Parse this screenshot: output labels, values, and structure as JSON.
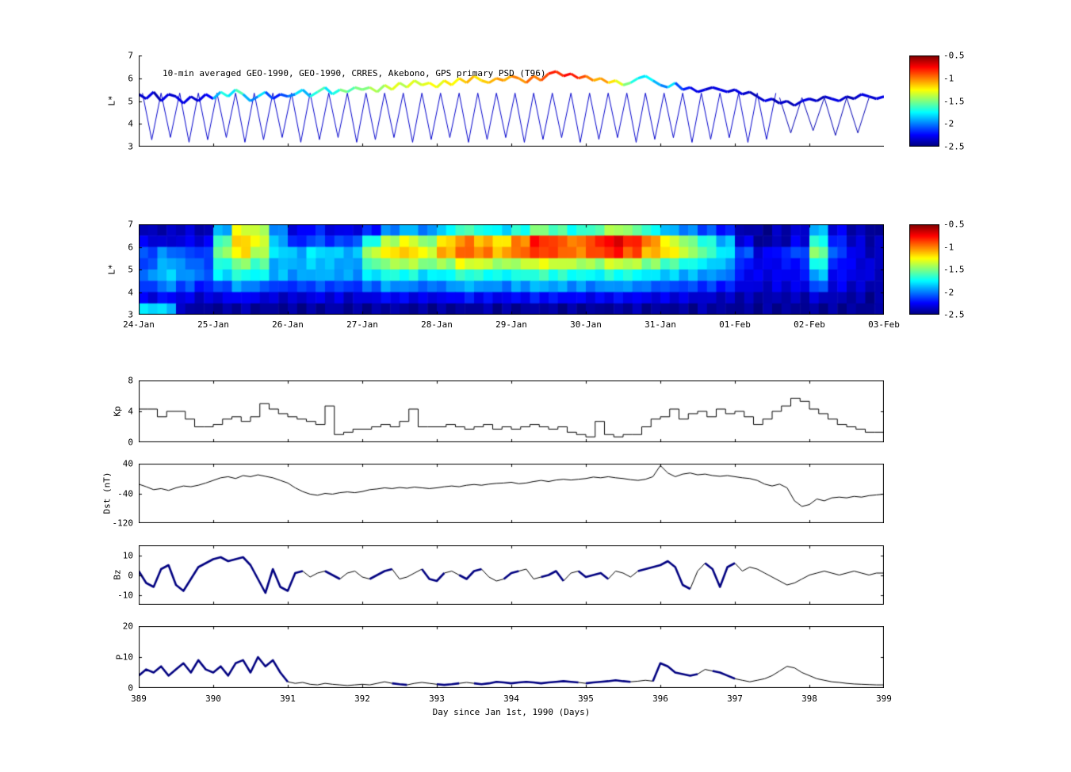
{
  "figure": {
    "background": "#ffffff"
  },
  "colormap": {
    "name": "jet",
    "range": [
      -2.5,
      -0.5
    ],
    "tick_labels": [
      "-0.5",
      "-1",
      "-1.5",
      "-2",
      "-2.5"
    ]
  },
  "chart_data": [
    {
      "id": "psd-scatter",
      "type": "scatter",
      "title": "10-min averaged GEO-1990, GEO-1990, CRRES, Akebono, GPS  primary PSD (T96)",
      "ylabel": "L*",
      "xlim": [
        389,
        399
      ],
      "ylim": [
        3,
        7
      ],
      "yticks": [
        3,
        4,
        5,
        6,
        7
      ],
      "track": {
        "x_start": 389.0,
        "x_step": 0.1,
        "y": [
          5.3,
          5.1,
          5.4,
          5.0,
          5.3,
          5.2,
          4.9,
          5.2,
          5.0,
          5.3,
          5.1,
          5.4,
          5.2,
          5.5,
          5.3,
          5.0,
          5.2,
          5.4,
          5.1,
          5.3,
          5.2,
          5.3,
          5.5,
          5.2,
          5.4,
          5.6,
          5.3,
          5.5,
          5.4,
          5.6,
          5.5,
          5.6,
          5.4,
          5.7,
          5.5,
          5.8,
          5.6,
          5.9,
          5.7,
          5.8,
          5.6,
          5.9,
          5.7,
          6.0,
          5.8,
          6.1,
          5.9,
          5.8,
          6.0,
          5.9,
          6.1,
          6.0,
          5.8,
          6.1,
          5.9,
          6.2,
          6.3,
          6.1,
          6.2,
          6.0,
          6.1,
          5.9,
          6.0,
          5.8,
          5.9,
          5.7,
          5.8,
          6.0,
          6.1,
          5.9,
          5.7,
          5.6,
          5.8,
          5.5,
          5.6,
          5.4,
          5.5,
          5.6,
          5.5,
          5.4,
          5.5,
          5.3,
          5.4,
          5.2,
          5.0,
          5.1,
          4.9,
          5.0,
          4.8,
          5.0,
          5.1,
          5.0,
          5.2,
          5.1,
          5.0,
          5.2,
          5.1,
          5.3,
          5.2,
          5.1,
          5.2
        ],
        "v": [
          -2.3,
          -2.35,
          -2.3,
          -2.4,
          -2.3,
          -2.35,
          -2.3,
          -2.3,
          -2.35,
          -2.3,
          -2.25,
          -1.9,
          -1.7,
          -1.8,
          -1.6,
          -1.9,
          -2.0,
          -1.8,
          -2.1,
          -2.2,
          -2.1,
          -2.0,
          -1.8,
          -1.9,
          -1.7,
          -1.6,
          -1.8,
          -1.7,
          -1.5,
          -1.6,
          -1.5,
          -1.5,
          -1.4,
          -1.45,
          -1.35,
          -1.3,
          -1.4,
          -1.3,
          -1.35,
          -1.3,
          -1.25,
          -1.3,
          -1.2,
          -1.25,
          -1.15,
          -1.1,
          -1.2,
          -1.15,
          -1.1,
          -1.05,
          -1.1,
          -1.0,
          -1.05,
          -0.95,
          -1.0,
          -0.9,
          -0.8,
          -0.85,
          -0.75,
          -0.8,
          -0.9,
          -1.0,
          -1.1,
          -1.05,
          -1.2,
          -1.3,
          -1.5,
          -1.7,
          -1.8,
          -1.75,
          -1.9,
          -2.0,
          -1.8,
          -2.1,
          -2.2,
          -2.3,
          -2.3,
          -2.35,
          -2.3,
          -2.3,
          -2.35,
          -2.3,
          -2.35,
          -2.4,
          -2.35,
          -2.3,
          -2.4,
          -2.35,
          -2.4,
          -2.35,
          -2.3,
          -2.35,
          -2.4,
          -2.35,
          -2.3,
          -2.35,
          -2.4,
          -2.35,
          -2.3,
          -2.35,
          -2.3
        ]
      },
      "orbit_sawtooth": [
        {
          "x_start": 389.05,
          "x_end": 397.55,
          "period": 0.25,
          "y_top": 5.35,
          "y_bottom": 3.3,
          "value": -2.35
        },
        {
          "x_start": 397.6,
          "x_end": 399.0,
          "period": 0.3,
          "y_top": 5.15,
          "y_bottom": 3.6,
          "value": -2.4
        }
      ]
    },
    {
      "id": "psd-map",
      "type": "heatmap",
      "ylabel": "L*",
      "xlim": [
        389,
        399
      ],
      "ylim": [
        3,
        7
      ],
      "yticks": [
        3,
        4,
        5,
        6,
        7
      ],
      "xtick_labels": [
        "24-Jan",
        "25-Jan",
        "26-Jan",
        "27-Jan",
        "28-Jan",
        "29-Jan",
        "30-Jan",
        "31-Jan",
        "01-Feb",
        "02-Feb",
        "03-Feb"
      ],
      "grid": {
        "x0": 389,
        "dx": 0.25,
        "y_top": 7,
        "dy": 0.5,
        "values_top_to_bottom": [
          [
            -2.4,
            -2.4,
            -2.35,
            -2.4,
            -1.9,
            -1.3,
            -1.4,
            -2.0,
            -2.3,
            -2.2,
            -2.3,
            -2.3,
            -2.2,
            -2.0,
            -1.9,
            -2.0,
            -1.8,
            -1.6,
            -1.7,
            -1.8,
            -1.7,
            -1.5,
            -1.6,
            -1.7,
            -1.6,
            -1.4,
            -1.5,
            -1.7,
            -1.9,
            -2.0,
            -2.1,
            -2.2,
            -2.4,
            -2.45,
            -2.4,
            -2.35,
            -1.9,
            -2.3,
            -2.4,
            -2.45
          ],
          [
            -2.3,
            -2.35,
            -2.3,
            -2.3,
            -1.6,
            -1.15,
            -1.3,
            -1.9,
            -2.2,
            -2.1,
            -2.15,
            -2.1,
            -1.7,
            -1.4,
            -1.3,
            -1.5,
            -1.2,
            -1.0,
            -1.1,
            -1.2,
            -1.0,
            -0.8,
            -0.9,
            -1.0,
            -0.85,
            -0.7,
            -0.8,
            -1.0,
            -1.3,
            -1.5,
            -1.7,
            -1.9,
            -2.3,
            -2.45,
            -2.4,
            -2.3,
            -1.7,
            -2.2,
            -2.35,
            -2.4
          ],
          [
            -2.1,
            -2.0,
            -2.1,
            -2.15,
            -1.5,
            -1.2,
            -1.4,
            -1.8,
            -1.9,
            -1.8,
            -1.85,
            -1.9,
            -1.4,
            -1.2,
            -1.15,
            -1.3,
            -1.1,
            -0.95,
            -1.0,
            -1.1,
            -0.95,
            -0.85,
            -0.9,
            -1.0,
            -0.9,
            -0.8,
            -0.9,
            -1.1,
            -1.2,
            -1.4,
            -1.6,
            -1.8,
            -2.1,
            -2.3,
            -2.2,
            -2.1,
            -1.5,
            -2.1,
            -2.3,
            -2.4
          ],
          [
            -2.1,
            -1.9,
            -2.0,
            -2.1,
            -1.7,
            -1.5,
            -1.6,
            -1.9,
            -1.9,
            -1.85,
            -1.9,
            -1.95,
            -1.6,
            -1.45,
            -1.4,
            -1.5,
            -1.45,
            -1.3,
            -1.35,
            -1.45,
            -1.4,
            -1.3,
            -1.35,
            -1.4,
            -1.45,
            -1.35,
            -1.4,
            -1.5,
            -1.6,
            -1.7,
            -1.8,
            -1.9,
            -2.2,
            -2.3,
            -2.25,
            -2.2,
            -1.7,
            -2.2,
            -2.3,
            -2.35
          ],
          [
            -2.0,
            -1.85,
            -1.95,
            -2.05,
            -1.8,
            -1.7,
            -1.75,
            -1.9,
            -1.95,
            -1.9,
            -1.92,
            -1.95,
            -1.8,
            -1.7,
            -1.72,
            -1.8,
            -1.75,
            -1.65,
            -1.7,
            -1.75,
            -1.7,
            -1.65,
            -1.68,
            -1.72,
            -1.75,
            -1.7,
            -1.72,
            -1.8,
            -1.85,
            -1.9,
            -1.95,
            -2.0,
            -2.25,
            -2.3,
            -2.28,
            -2.25,
            -1.9,
            -2.25,
            -2.3,
            -2.35
          ],
          [
            -2.15,
            -2.0,
            -2.1,
            -2.2,
            -2.1,
            -1.95,
            -2.05,
            -2.15,
            -2.15,
            -2.1,
            -2.12,
            -2.15,
            -2.05,
            -1.95,
            -2.0,
            -2.05,
            -2.0,
            -1.9,
            -1.95,
            -2.0,
            -1.95,
            -1.9,
            -1.93,
            -1.97,
            -2.0,
            -1.95,
            -1.97,
            -2.05,
            -2.1,
            -2.12,
            -2.15,
            -2.2,
            -2.3,
            -2.35,
            -2.32,
            -2.3,
            -2.1,
            -2.3,
            -2.35,
            -2.4
          ],
          [
            -2.3,
            -2.25,
            -2.3,
            -2.35,
            -2.3,
            -2.25,
            -2.3,
            -2.35,
            -2.35,
            -2.3,
            -2.32,
            -2.35,
            -2.3,
            -2.25,
            -2.28,
            -2.3,
            -2.28,
            -2.22,
            -2.25,
            -2.28,
            -2.25,
            -2.22,
            -2.24,
            -2.26,
            -2.28,
            -2.25,
            -2.26,
            -2.3,
            -2.3,
            -2.32,
            -2.35,
            -2.38,
            -2.4,
            -2.42,
            -2.4,
            -2.4,
            -2.35,
            -2.4,
            -2.42,
            -2.45
          ],
          [
            -1.8,
            -1.85,
            -2.4,
            -2.45,
            -2.45,
            -2.42,
            -2.45,
            -2.45,
            -2.45,
            -2.45,
            -2.42,
            -2.45,
            -2.45,
            -2.42,
            -2.45,
            -2.45,
            -2.45,
            -2.45,
            -2.42,
            -2.45,
            -2.45,
            -2.42,
            -2.45,
            -2.45,
            -2.45,
            -2.45,
            -2.42,
            -2.45,
            -2.45,
            -2.45,
            -2.42,
            -2.45,
            -2.45,
            -2.45,
            -2.45,
            -2.45,
            -2.45,
            -2.45,
            -2.45,
            -2.45
          ]
        ]
      }
    },
    {
      "id": "kp",
      "type": "step",
      "ylabel": "Kp",
      "xlim": [
        389,
        399
      ],
      "ylim": [
        0,
        8
      ],
      "yticks": [
        0,
        4,
        8
      ],
      "line_color": "#000000",
      "x_start": 389,
      "x_step": 0.125,
      "y": [
        4.3,
        4.3,
        3.3,
        4,
        4,
        3,
        2,
        2,
        2.3,
        3,
        3.3,
        2.7,
        3.3,
        5,
        4.3,
        3.7,
        3.3,
        3,
        2.7,
        2.3,
        4.7,
        1,
        1.3,
        1.7,
        1.7,
        2,
        2.3,
        2,
        2.7,
        4.3,
        2,
        2,
        2,
        2.3,
        2,
        1.7,
        2,
        2.3,
        1.7,
        2,
        1.7,
        2,
        2.3,
        2,
        1.7,
        2,
        1.3,
        1,
        0.7,
        2.7,
        1,
        0.7,
        1,
        1,
        2,
        3,
        3.3,
        4.3,
        3,
        3.7,
        4,
        3.3,
        4.3,
        3.7,
        4,
        3.3,
        2.3,
        3,
        4,
        4.7,
        5.7,
        5.3,
        4.3,
        3.7,
        3,
        2.3,
        2,
        1.7,
        1.3,
        1.3
      ]
    },
    {
      "id": "dst",
      "type": "line",
      "ylabel": "Dst (nT)",
      "xlim": [
        389,
        399
      ],
      "ylim": [
        -120,
        40
      ],
      "yticks": [
        -120,
        -40,
        40
      ],
      "line_color": "#000000",
      "x_start": 389,
      "x_step": 0.1,
      "y": [
        -15,
        -22,
        -30,
        -27,
        -32,
        -25,
        -20,
        -22,
        -18,
        -12,
        -5,
        2,
        5,
        0,
        8,
        5,
        10,
        6,
        2,
        -5,
        -12,
        -25,
        -35,
        -42,
        -45,
        -40,
        -42,
        -38,
        -36,
        -38,
        -35,
        -30,
        -28,
        -25,
        -27,
        -24,
        -26,
        -23,
        -25,
        -27,
        -25,
        -22,
        -20,
        -22,
        -18,
        -16,
        -18,
        -15,
        -13,
        -12,
        -10,
        -14,
        -12,
        -8,
        -5,
        -8,
        -4,
        -2,
        -4,
        -2,
        0,
        4,
        2,
        5,
        2,
        0,
        -3,
        -5,
        -2,
        5,
        35,
        15,
        5,
        12,
        15,
        10,
        12,
        8,
        6,
        8,
        5,
        2,
        0,
        -5,
        -15,
        -20,
        -15,
        -25,
        -60,
        -75,
        -70,
        -55,
        -60,
        -52,
        -50,
        -52,
        -48,
        -50,
        -46,
        -44,
        -42
      ]
    },
    {
      "id": "bz",
      "type": "line",
      "ylabel": "Bz",
      "xlim": [
        389,
        399
      ],
      "ylim": [
        -15,
        15
      ],
      "yticks": [
        -10,
        0,
        10
      ],
      "line_color": "#000000",
      "highlight_color": "#000080",
      "highlight_ranges": [
        [
          389,
          391.2
        ],
        [
          391.5,
          391.7
        ],
        [
          392.1,
          392.4
        ],
        [
          392.8,
          393.1
        ],
        [
          393.3,
          393.6
        ],
        [
          393.9,
          394.15
        ],
        [
          394.4,
          394.7
        ],
        [
          394.9,
          395.3
        ],
        [
          395.7,
          396.4
        ],
        [
          396.6,
          397.0
        ]
      ],
      "x_start": 389,
      "x_step": 0.1,
      "y": [
        2,
        -4,
        -6,
        3,
        5,
        -5,
        -8,
        -2,
        4,
        6,
        8,
        9,
        7,
        8,
        9,
        5,
        -2,
        -9,
        3,
        -6,
        -8,
        1,
        2,
        -1,
        1,
        2,
        0,
        -2,
        1,
        2,
        -1,
        -2,
        0,
        2,
        3,
        -2,
        -1,
        1,
        3,
        -2,
        -3,
        1,
        2,
        0,
        -2,
        2,
        3,
        -1,
        -3,
        -2,
        1,
        2,
        3,
        -2,
        -1,
        0,
        2,
        -3,
        1,
        2,
        -1,
        0,
        1,
        -2,
        2,
        1,
        -1,
        2,
        3,
        4,
        5,
        7,
        4,
        -5,
        -7,
        2,
        6,
        3,
        -6,
        4,
        6,
        2,
        4,
        3,
        1,
        -1,
        -3,
        -5,
        -4,
        -2,
        0,
        1,
        2,
        1,
        0,
        1,
        2,
        1,
        0,
        1,
        1
      ]
    },
    {
      "id": "p",
      "type": "line",
      "ylabel": "P",
      "xlabel": "Day since Jan 1st, 1990 (Days)",
      "xlim": [
        389,
        399
      ],
      "ylim": [
        0,
        20
      ],
      "yticks": [
        0,
        10,
        20
      ],
      "xticks": [
        389,
        390,
        391,
        392,
        393,
        394,
        395,
        396,
        397,
        398,
        399
      ],
      "line_color": "#000000",
      "highlight_color": "#000080",
      "highlight_ranges": [
        [
          389,
          391.05
        ],
        [
          392.4,
          392.6
        ],
        [
          393.0,
          393.3
        ],
        [
          393.5,
          394.9
        ],
        [
          395.0,
          395.6
        ],
        [
          395.9,
          396.5
        ],
        [
          396.7,
          397.0
        ]
      ],
      "x_start": 389,
      "x_step": 0.1,
      "y": [
        4,
        6,
        5,
        7,
        4,
        6,
        8,
        5,
        9,
        6,
        5,
        7,
        4,
        8,
        9,
        5,
        10,
        7,
        9,
        5,
        2,
        1.5,
        1.8,
        1.2,
        1,
        1.5,
        1.2,
        1,
        0.8,
        1,
        1.2,
        1,
        1.5,
        2,
        1.5,
        1.2,
        1,
        1.5,
        1.8,
        1.5,
        1.2,
        1,
        1.2,
        1.5,
        1.8,
        1.5,
        1.2,
        1.5,
        2,
        1.8,
        1.5,
        1.8,
        2,
        1.8,
        1.5,
        1.8,
        2,
        2.2,
        2,
        1.8,
        1.5,
        1.8,
        2,
        2.2,
        2.5,
        2.2,
        2,
        2.2,
        2.5,
        2.2,
        8,
        7,
        5,
        4.5,
        4,
        4.5,
        6,
        5.5,
        5,
        4,
        3,
        2.5,
        2,
        2.5,
        3,
        4,
        5.5,
        7,
        6.5,
        5,
        4,
        3,
        2.5,
        2,
        1.8,
        1.5,
        1.3,
        1.2,
        1.1,
        1,
        1
      ]
    }
  ]
}
